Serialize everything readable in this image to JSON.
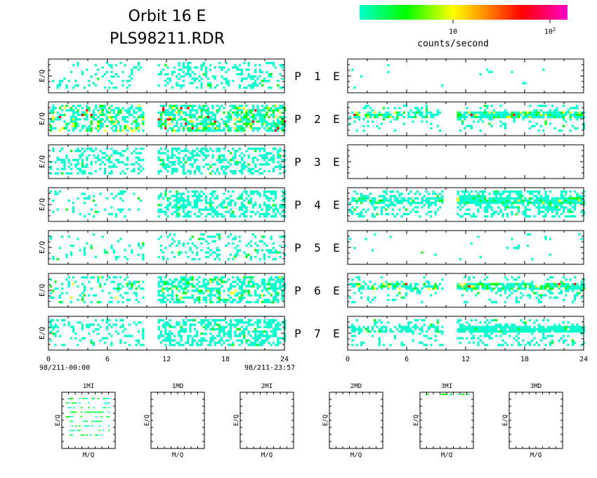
{
  "header": {
    "title_line1": "Orbit 16 E",
    "title_line2": "PLS98211.RDR"
  },
  "colorbar": {
    "tick_10": "10",
    "tick_100_base": "10",
    "tick_100_exp": "2",
    "label": "counts/second",
    "stops": [
      "#00ffcc",
      "#00ff00",
      "#ffff00",
      "#ff8000",
      "#ff0000",
      "#ff00c8"
    ]
  },
  "panel_labels": {
    "left_axis": "E/Q",
    "p": "P",
    "e": "E",
    "numbers": [
      "1",
      "2",
      "3",
      "4",
      "5",
      "6",
      "7"
    ]
  },
  "time_axis": {
    "ticks": [
      "0",
      "6",
      "12",
      "18",
      "24"
    ],
    "start_label": "98/211-00:00",
    "end_label": "98/211-23:57"
  },
  "chart_data": {
    "type": "heatmap",
    "description_title": "Orbit 16 E",
    "file": "PLS98211.RDR",
    "color_scale": "log counts/second (~1 to ~200)",
    "xlim_hours": [
      0,
      24
    ],
    "data_gap_hours": [
      9.5,
      11.0
    ],
    "left_column_panels": [
      {
        "label": "P 1 left",
        "density": 0.18,
        "pre_gap_density": 0.15,
        "post_gap_density": 0.28,
        "peak_level": "low"
      },
      {
        "label": "P 2 left",
        "density": 0.55,
        "pre_gap_density": 0.5,
        "post_gap_density": 0.6,
        "peak_level": "high"
      },
      {
        "label": "P 3 left",
        "density": 0.3,
        "pre_gap_density": 0.3,
        "post_gap_density": 0.45,
        "peak_level": "low"
      },
      {
        "label": "P 4 left",
        "density": 0.15,
        "pre_gap_density": 0.12,
        "post_gap_density": 0.45,
        "peak_level": "low"
      },
      {
        "label": "P 5 left",
        "density": 0.1,
        "pre_gap_density": 0.08,
        "post_gap_density": 0.2,
        "peak_level": "low"
      },
      {
        "label": "P 6 left",
        "density": 0.2,
        "pre_gap_density": 0.2,
        "post_gap_density": 0.5,
        "peak_level": "medium"
      },
      {
        "label": "P 7 left",
        "density": 0.2,
        "pre_gap_density": 0.2,
        "post_gap_density": 0.5,
        "peak_level": "low"
      }
    ],
    "right_column_panels": [
      {
        "label": "1 E right",
        "density": 0.01,
        "band": false
      },
      {
        "label": "2 E right",
        "density": 0.12,
        "band": true,
        "band_level": "high"
      },
      {
        "label": "3 E right",
        "density": 0.0,
        "band": false
      },
      {
        "label": "4 E right",
        "density": 0.35,
        "band": true,
        "band_level": "medium"
      },
      {
        "label": "5 E right",
        "density": 0.03,
        "band": false
      },
      {
        "label": "6 E right",
        "density": 0.15,
        "band": true,
        "band_level": "high"
      },
      {
        "label": "7 E right",
        "density": 0.2,
        "band": true,
        "band_level": "low"
      }
    ],
    "mini_panels": [
      {
        "title": "1MI",
        "has_data": true
      },
      {
        "title": "1MD",
        "has_data": false
      },
      {
        "title": "2MI",
        "has_data": false
      },
      {
        "title": "2MD",
        "has_data": false
      },
      {
        "title": "3MI",
        "has_data": true
      },
      {
        "title": "3MD",
        "has_data": false
      }
    ],
    "mini_xlabel": "M/Q",
    "mini_ylabel": "E/Q"
  }
}
